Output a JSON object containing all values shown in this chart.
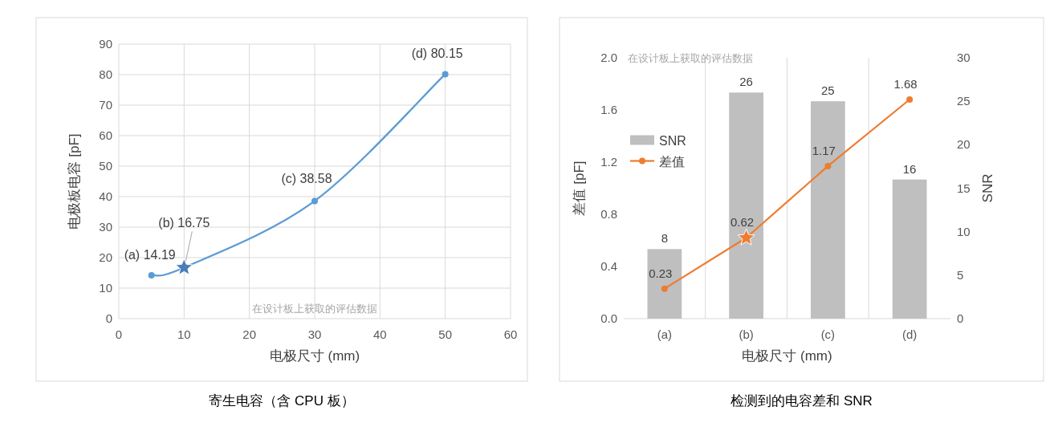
{
  "chart_data": [
    {
      "type": "line",
      "title": "寄生电容（含 CPU 板）",
      "xlabel": "电极尺寸 (mm)",
      "ylabel": "电极板电容 [pF]",
      "xlim": [
        0,
        60
      ],
      "xticks": [
        0,
        10,
        20,
        30,
        40,
        50,
        60
      ],
      "ylim": [
        0,
        90
      ],
      "yticks": [
        0,
        10,
        20,
        30,
        40,
        50,
        60,
        70,
        80,
        90
      ],
      "grid": true,
      "legend": false,
      "marker": "circle",
      "line_style": "solid",
      "series": [
        {
          "color": "#5b9bd5",
          "x": [
            5,
            10,
            30,
            50
          ],
          "values": [
            14.19,
            16.75,
            38.58,
            80.15
          ]
        },
        {
          "type": "scatter",
          "marker": "star",
          "color": "#4a7ebb",
          "x": [
            10
          ],
          "values": [
            16.75
          ]
        }
      ],
      "annotations": [
        {
          "text": "(a) 14.19",
          "x": 5,
          "y": 14.19
        },
        {
          "text": "(b) 16.75",
          "x": 10,
          "y": 16.75
        },
        {
          "text": "(c) 38.58",
          "x": 30,
          "y": 38.58
        },
        {
          "text": "(d) 80.15",
          "x": 50,
          "y": 80.15
        },
        "在设计板上获取的评估数据"
      ]
    },
    {
      "type": "bar",
      "title": "检测到的电容差和 SNR",
      "xlabel": "电极尺寸 (mm)",
      "ylabel": "差值 [pF]",
      "y2label": "SNR",
      "categories": [
        "(a)",
        "(b)",
        "(c)",
        "(d)"
      ],
      "ylim": [
        0,
        2.0
      ],
      "yticks": [
        {
          "value": 0,
          "label": "0.0"
        },
        0.4,
        0.8,
        1.2,
        1.6,
        {
          "value": 2,
          "label": "2.0"
        }
      ],
      "y2lim": [
        0,
        30
      ],
      "y2ticks": [
        0,
        5,
        10,
        15,
        20,
        25,
        30
      ],
      "grid": "x",
      "legend": "left",
      "marker": "circle",
      "series": [
        {
          "name": "SNR",
          "axis": "y2",
          "color": "#bfbfbf",
          "values": [
            8,
            26,
            25,
            16
          ],
          "value_labels": [
            "8",
            "26",
            "25",
            "16"
          ]
        },
        {
          "name": "差值",
          "type": "line",
          "color": "#ed7d31",
          "values": [
            0.23,
            0.62,
            1.17,
            1.68
          ],
          "value_labels": [
            "0.23",
            "0.62",
            "1.17",
            "1.68"
          ]
        },
        {
          "type": "scatter",
          "marker": "star",
          "color": "#ed7d31",
          "x": [
            "(b)"
          ],
          "values": [
            0.62
          ]
        }
      ],
      "annotations": [
        "在设计板上获取的评估数据"
      ]
    }
  ]
}
